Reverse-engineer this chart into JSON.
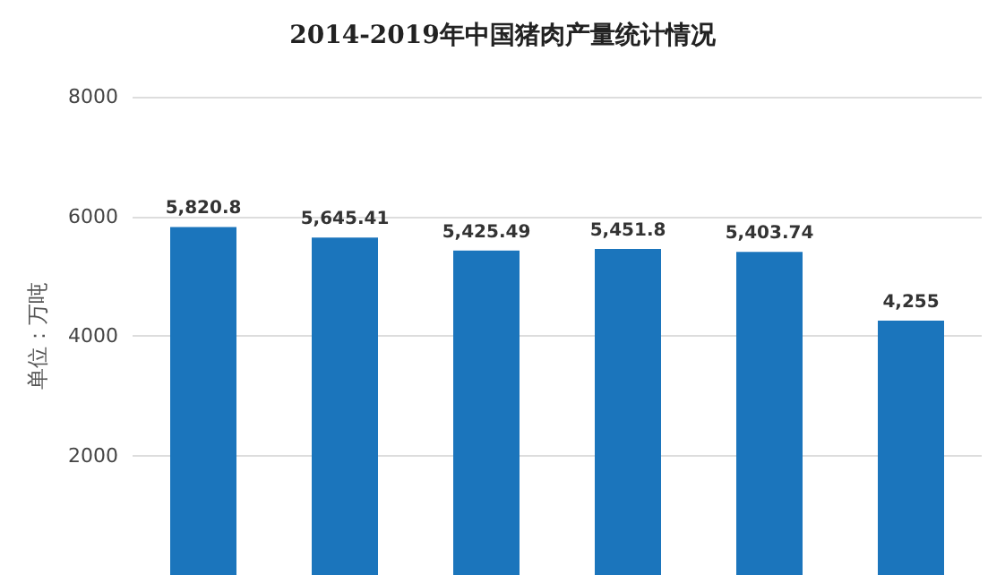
{
  "chart_data": {
    "type": "bar",
    "title": "2014-2019年中国猪肉产量统计情况",
    "ylabel": "单位：万吨",
    "categories": [
      null,
      null,
      null,
      null,
      null,
      null
    ],
    "series": [
      {
        "color": "#1b75bc",
        "values": [
          5820.8,
          5645.41,
          5425.49,
          5451.8,
          5403.74,
          4255
        ],
        "value_labels": [
          "5,820.8",
          "5,645.41",
          "5,425.49",
          "5,451.8",
          "5,403.74",
          "4,255"
        ]
      }
    ],
    "ylim": [
      0,
      8000
    ],
    "yticks": [
      2000,
      4000,
      6000,
      8000
    ],
    "grid": "y",
    "tick_labels": "y"
  }
}
